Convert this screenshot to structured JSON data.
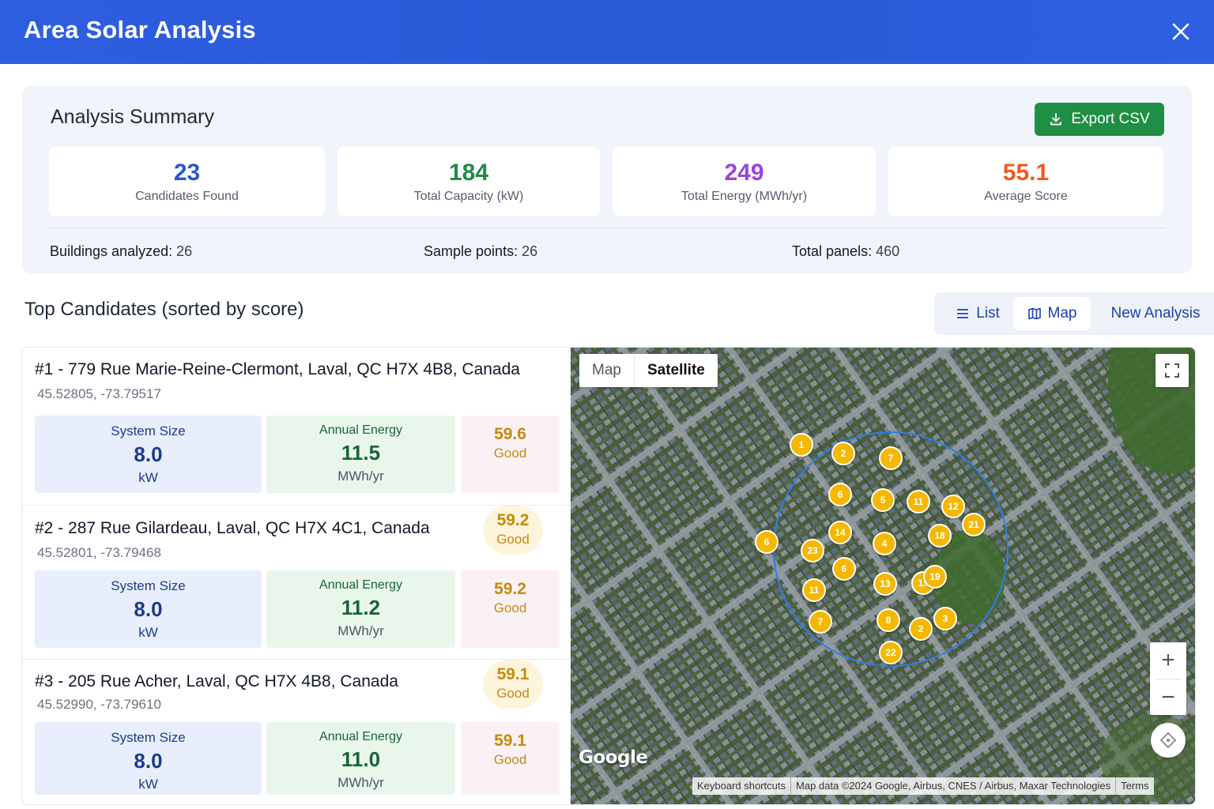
{
  "header": {
    "title": "Area Solar Analysis"
  },
  "summary": {
    "title": "Analysis Summary",
    "export_label": "Export CSV",
    "stats": [
      {
        "value": "23",
        "label": "Candidates Found",
        "color": "#2b55d4"
      },
      {
        "value": "184",
        "label": "Total Capacity (kW)",
        "color": "#1f8a46"
      },
      {
        "value": "249",
        "label": "Total Energy (MWh/yr)",
        "color": "#9b45e0"
      },
      {
        "value": "55.1",
        "label": "Average Score",
        "color": "#f05a1e"
      }
    ],
    "meta": [
      {
        "key": "Buildings analyzed:",
        "value": "26"
      },
      {
        "key": "Sample points:",
        "value": "26"
      },
      {
        "key": "Total panels:",
        "value": "460"
      }
    ]
  },
  "candidates_section": {
    "title": "Top Candidates (sorted by score)",
    "view_buttons": {
      "list": "List",
      "map": "Map",
      "new": "New Analysis"
    }
  },
  "candidates": [
    {
      "title": "#1 - 779 Rue Marie-Reine-Clermont, Laval, QC H7X 4B8, Canada",
      "coords": "45.52805, -73.79517",
      "system_label": "System Size",
      "system_value": "8.0",
      "system_unit": "kW",
      "energy_label": "Annual Energy",
      "energy_value": "11.5",
      "energy_unit": "MWh/yr",
      "score": "59.6",
      "rating": "Good"
    },
    {
      "title": "#2 - 287 Rue Gilardeau, Laval, QC H7X 4C1, Canada",
      "coords": "45.52801, -73.79468",
      "pill_score": "59.2",
      "pill_rating": "Good",
      "system_label": "System Size",
      "system_value": "8.0",
      "system_unit": "kW",
      "energy_label": "Annual Energy",
      "energy_value": "11.2",
      "energy_unit": "MWh/yr",
      "score": "59.2",
      "rating": "Good"
    },
    {
      "title": "#3 - 205 Rue Acher, Laval, QC H7X 4B8, Canada",
      "coords": "45.52990, -73.79610",
      "pill_score": "59.1",
      "pill_rating": "Good",
      "system_label": "System Size",
      "system_value": "8.0",
      "system_unit": "kW",
      "energy_label": "Annual Energy",
      "energy_value": "11.0",
      "energy_unit": "MWh/yr",
      "score": "59.1",
      "rating": "Good"
    }
  ],
  "map": {
    "type_map": "Map",
    "type_satellite": "Satellite",
    "logo": "Google",
    "attribution": {
      "shortcuts": "Keyboard shortcuts",
      "data": "Map data ©2024 Google, Airbus, CNES / Airbus, Maxar Technologies",
      "terms": "Terms"
    },
    "zoom_in": "+",
    "zoom_out": "−",
    "markers": [
      "1",
      "2",
      "7",
      "6",
      "5",
      "11",
      "12",
      "21",
      "6",
      "14",
      "4",
      "18",
      "23",
      "6",
      "13",
      "15",
      "19",
      "11",
      "7",
      "8",
      "2",
      "3",
      "22"
    ]
  }
}
